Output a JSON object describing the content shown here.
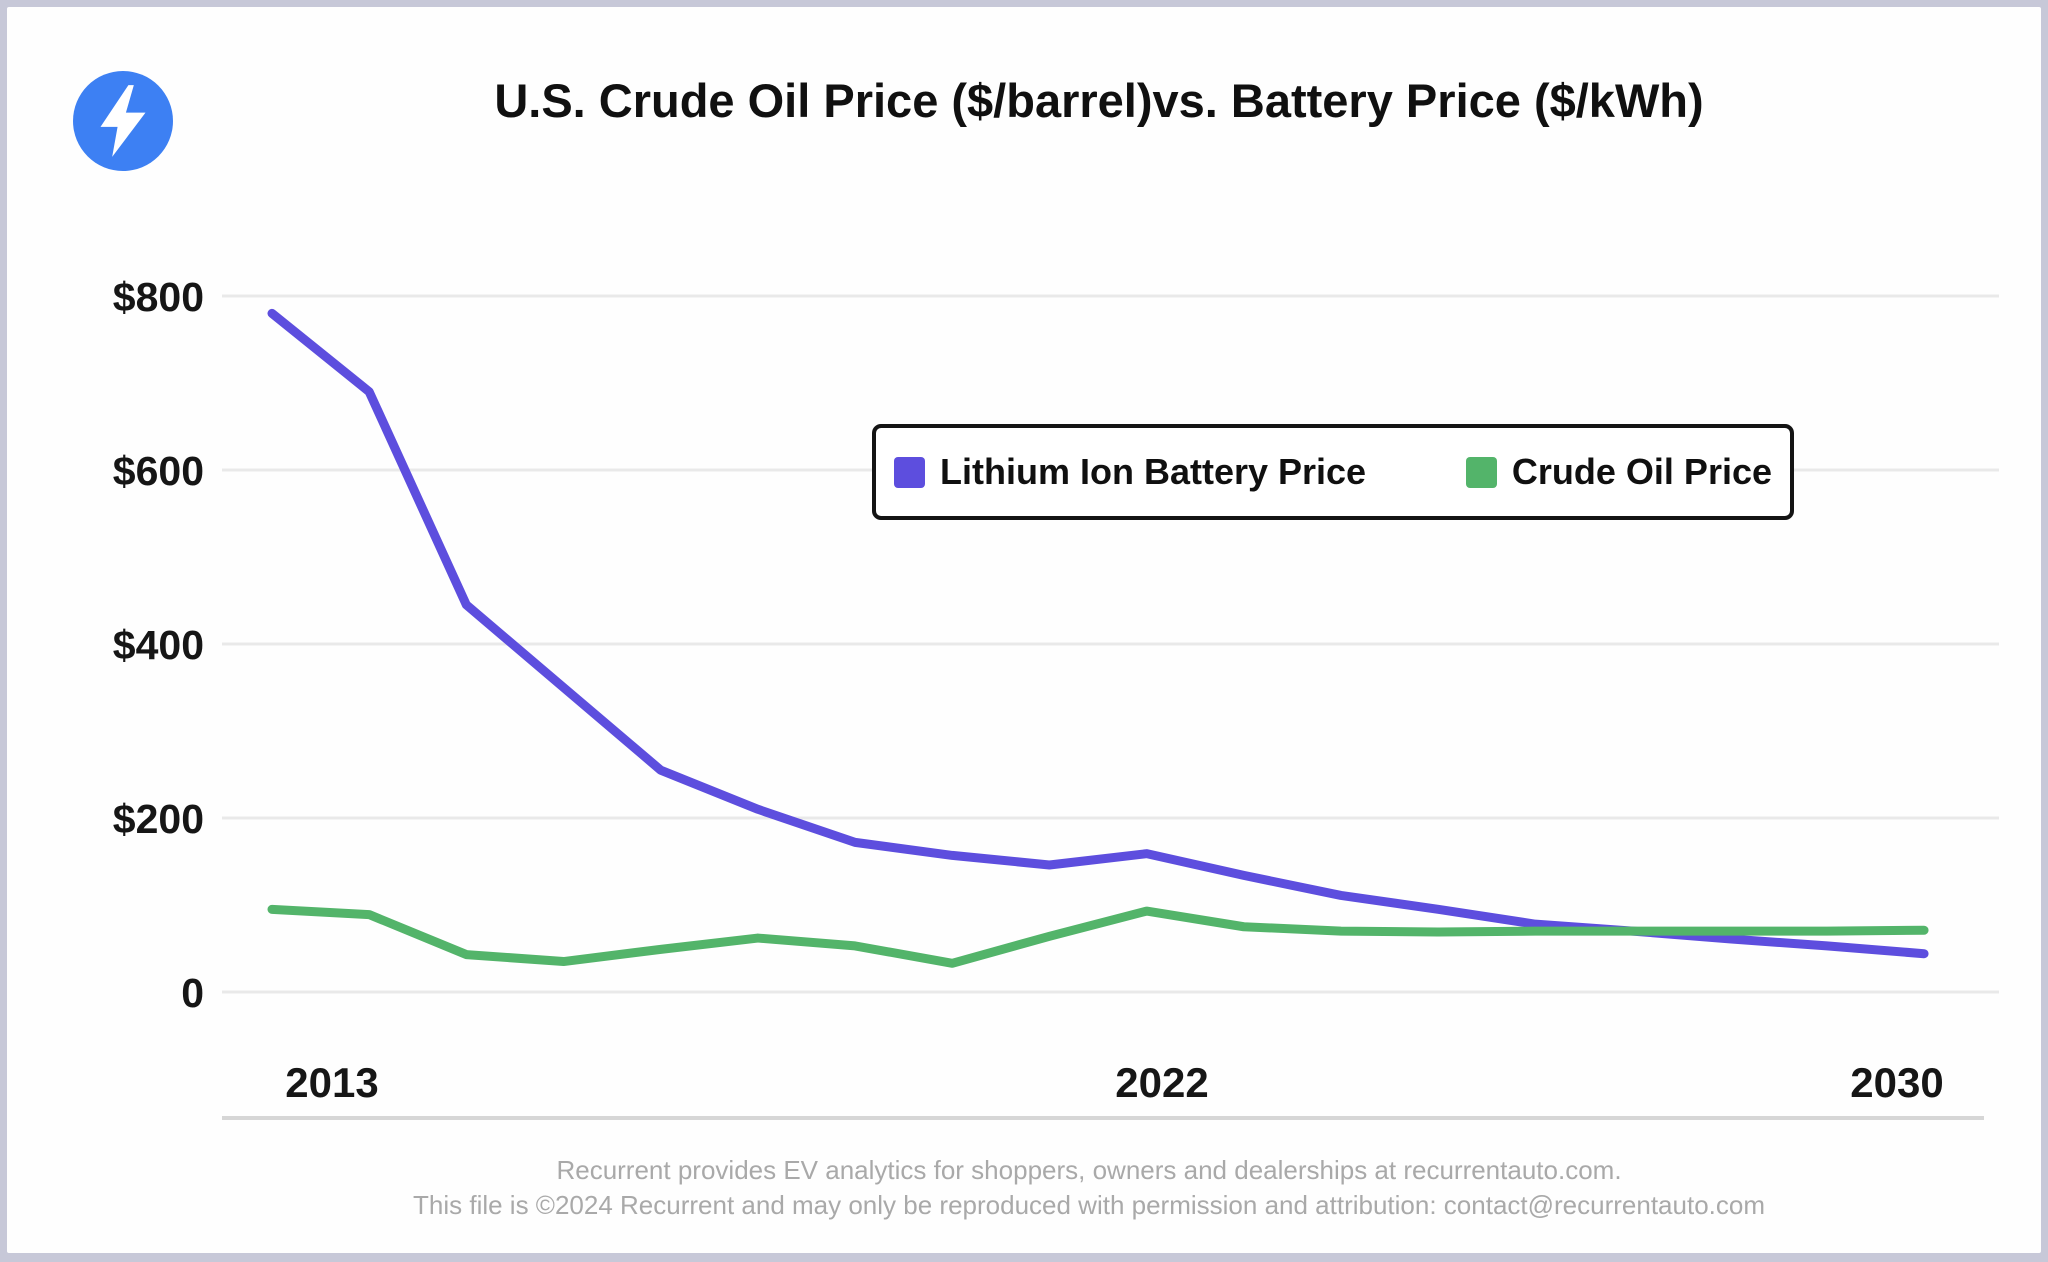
{
  "header": {
    "title": "U.S. Crude Oil Price ($/barrel)vs. Battery Price ($/kWh)",
    "logo_icon": "lightning-bolt-icon",
    "logo_color": "#3d80f3"
  },
  "legend": {
    "items": [
      {
        "label": "Lithium Ion Battery Price",
        "color": "#5d4ede"
      },
      {
        "label": "Crude Oil Price",
        "color": "#53b46a"
      }
    ]
  },
  "chart_data": {
    "type": "line",
    "x": [
      2013,
      2014,
      2015,
      2016,
      2017,
      2018,
      2019,
      2020,
      2021,
      2022,
      2023,
      2024,
      2025,
      2026,
      2027,
      2028,
      2029,
      2030
    ],
    "series": [
      {
        "name": "Lithium Ion Battery Price",
        "color": "#5d4ede",
        "values": [
          780,
          690,
          445,
          350,
          255,
          210,
          172,
          157,
          146,
          159,
          134,
          111,
          95,
          78,
          70,
          61,
          53,
          44
        ]
      },
      {
        "name": "Crude Oil Price",
        "color": "#53b46a",
        "values": [
          95,
          89,
          43,
          35,
          49,
          62,
          53,
          33,
          64,
          93,
          75,
          70,
          69,
          70,
          70,
          70,
          70,
          71
        ]
      }
    ],
    "title": "U.S. Crude Oil Price ($/barrel)vs. Battery Price ($/kWh)",
    "xlabel": "",
    "ylabel": "",
    "ylim": [
      0,
      800
    ],
    "grid": "horizontal",
    "legend_position": "inside-top-center",
    "y_ticks": [
      {
        "value": 800,
        "label": "$800"
      },
      {
        "value": 600,
        "label": "$600"
      },
      {
        "value": 400,
        "label": "$400"
      },
      {
        "value": 200,
        "label": "$200"
      },
      {
        "value": 0,
        "label": "0"
      }
    ],
    "x_ticks": [
      {
        "value": 2013,
        "label": "2013"
      },
      {
        "value": 2022,
        "label": "2022"
      },
      {
        "value": 2030,
        "label": "2030"
      }
    ],
    "grid_color": "#e9e9e9"
  },
  "footer": {
    "line1": "Recurrent provides EV analytics for shoppers, owners and dealerships at recurrentauto.com.",
    "line2": "This file is ©2024 Recurrent and may only be reproduced with permission and attribution: contact@recurrentauto.com"
  }
}
